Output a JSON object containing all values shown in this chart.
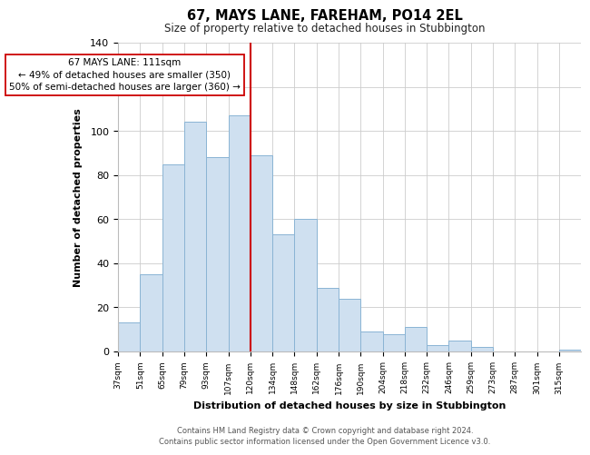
{
  "title": "67, MAYS LANE, FAREHAM, PO14 2EL",
  "subtitle": "Size of property relative to detached houses in Stubbington",
  "xlabel": "Distribution of detached houses by size in Stubbington",
  "ylabel": "Number of detached properties",
  "bin_labels": [
    "37sqm",
    "51sqm",
    "65sqm",
    "79sqm",
    "93sqm",
    "107sqm",
    "120sqm",
    "134sqm",
    "148sqm",
    "162sqm",
    "176sqm",
    "190sqm",
    "204sqm",
    "218sqm",
    "232sqm",
    "246sqm",
    "259sqm",
    "273sqm",
    "287sqm",
    "301sqm",
    "315sqm"
  ],
  "bar_heights": [
    13,
    35,
    85,
    104,
    88,
    107,
    89,
    53,
    60,
    29,
    24,
    9,
    8,
    11,
    3,
    5,
    2,
    0,
    0,
    0,
    1
  ],
  "bar_color": "#cfe0f0",
  "bar_edge_color": "#8ab4d4",
  "vline_x_index": 6,
  "vline_color": "#cc0000",
  "annotation_title": "67 MAYS LANE: 111sqm",
  "annotation_line1": "← 49% of detached houses are smaller (350)",
  "annotation_line2": "50% of semi-detached houses are larger (360) →",
  "ylim": [
    0,
    140
  ],
  "yticks": [
    0,
    20,
    40,
    60,
    80,
    100,
    120,
    140
  ],
  "footer1": "Contains HM Land Registry data © Crown copyright and database right 2024.",
  "footer2": "Contains public sector information licensed under the Open Government Licence v3.0.",
  "background_color": "#ffffff",
  "grid_color": "#cccccc"
}
